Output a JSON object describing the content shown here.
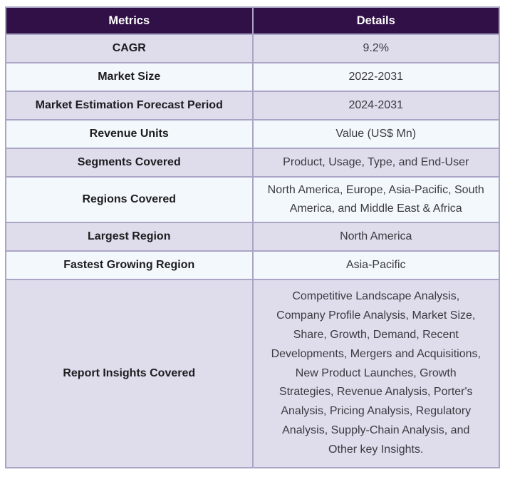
{
  "table": {
    "headers": [
      "Metrics",
      "Details"
    ],
    "rows": [
      {
        "metric": "CAGR",
        "detail": "9.2%"
      },
      {
        "metric": "Market Size",
        "detail": "2022-2031"
      },
      {
        "metric": "Market Estimation Forecast Period",
        "detail": "2024-2031"
      },
      {
        "metric": "Revenue Units",
        "detail": "Value (US$ Mn)"
      },
      {
        "metric": "Segments Covered",
        "detail": "Product, Usage, Type, and End-User"
      },
      {
        "metric": "Regions Covered",
        "detail": "North America, Europe, Asia-Pacific, South America, and Middle East & Africa"
      },
      {
        "metric": "Largest Region",
        "detail": "North America"
      },
      {
        "metric": "Fastest Growing Region",
        "detail": "Asia-Pacific"
      },
      {
        "metric": "Report Insights Covered",
        "detail": "Competitive Landscape Analysis, Company Profile Analysis, Market Size, Share, Growth, Demand, Recent Developments, Mergers and Acquisitions, New Product Launches, Growth Strategies, Revenue Analysis, Porter's Analysis, Pricing Analysis, Regulatory Analysis, Supply-Chain Analysis, and Other key Insights."
      }
    ]
  },
  "colors": {
    "header_bg": "#311047",
    "header_text": "#ffffff",
    "row_odd_bg": "#dfdcec",
    "row_even_bg": "#f3f8fc",
    "border": "#aba5c5",
    "metric_text": "#1d1d1f",
    "detail_text": "#3b3b40"
  }
}
